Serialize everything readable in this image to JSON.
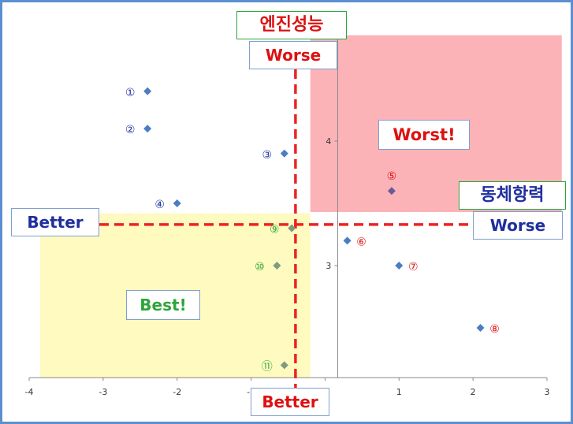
{
  "colors": {
    "worst_region": "#fcb3b8",
    "best_region": "#fefac0",
    "point_blue": "#4a7dc3",
    "point_green": "#7f9a7f",
    "point_purple": "#6a5a9a",
    "threshold_line": "#ee2222",
    "axis_label_red": "#dd1111",
    "label_blue": "#1f2f9f",
    "label_green": "#2ea53a"
  },
  "chart_data": {
    "type": "scatter",
    "title": "",
    "xlabel": "동체항력",
    "ylabel": "엔진성능",
    "x_ticks": [
      -4,
      -3,
      -2,
      -1,
      0,
      1,
      2,
      3
    ],
    "y_ticks": [
      3,
      4
    ],
    "xlim": [
      -4,
      3
    ],
    "ylim": [
      2.1,
      4.9
    ],
    "grid": false,
    "thresholds": {
      "x": -0.4,
      "y": 3.33
    },
    "regions": [
      {
        "name": "worst",
        "label": "Worst!",
        "x": [
          -0.2,
          3.2
        ],
        "y": [
          3.43,
          4.85
        ]
      },
      {
        "name": "best",
        "label": "Best!",
        "x": [
          -3.85,
          -0.2
        ],
        "y": [
          2.1,
          3.42
        ]
      }
    ],
    "points": [
      {
        "id": "①",
        "x": -2.4,
        "y": 4.4,
        "series": "blue"
      },
      {
        "id": "②",
        "x": -2.4,
        "y": 4.1,
        "series": "blue"
      },
      {
        "id": "③",
        "x": -0.55,
        "y": 3.9,
        "series": "blue"
      },
      {
        "id": "④",
        "x": -2.0,
        "y": 3.5,
        "series": "blue"
      },
      {
        "id": "⑤",
        "x": 0.9,
        "y": 3.6,
        "series": "purple"
      },
      {
        "id": "⑥",
        "x": 0.3,
        "y": 3.2,
        "series": "blue"
      },
      {
        "id": "⑦",
        "x": 1.0,
        "y": 3.0,
        "series": "blue"
      },
      {
        "id": "⑧",
        "x": 2.1,
        "y": 2.5,
        "series": "blue"
      },
      {
        "id": "⑨",
        "x": -0.45,
        "y": 3.3,
        "series": "green"
      },
      {
        "id": "⑩",
        "x": -0.65,
        "y": 3.0,
        "series": "green"
      },
      {
        "id": "⑪",
        "x": -0.55,
        "y": 2.2,
        "series": "green"
      }
    ]
  },
  "labels": {
    "y_axis_title": "엔진성능",
    "y_worse": "Worse",
    "y_better": "Better",
    "x_axis_title": "동체항력",
    "x_worse": "Worse",
    "x_better": "Better",
    "worst": "Worst!",
    "best": "Best!"
  }
}
